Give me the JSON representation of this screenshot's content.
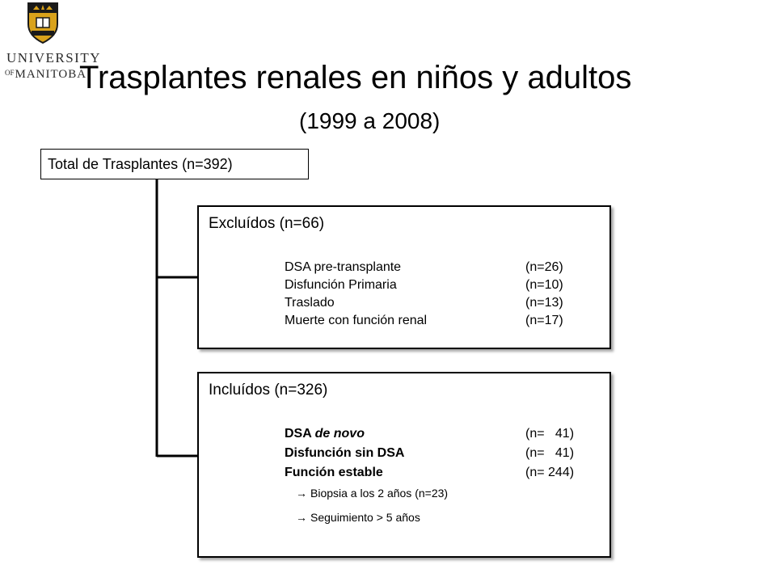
{
  "logo": {
    "line1": "UNIVERSITY",
    "line2_of": "OF",
    "line2": "MANITOBA",
    "color": "#2a2a2a",
    "crest_colors": [
      "#d9a21b",
      "#1a1a1a"
    ]
  },
  "title": "Trasplantes renales en niños y adultos",
  "subtitle": "(1999 a 2008)",
  "total_box": {
    "label": "Total de Trasplantes (n=392)"
  },
  "excluded": {
    "header": "Excluídos (n=66)",
    "items": [
      {
        "label": "DSA pre-transplante",
        "count": "(n=26)"
      },
      {
        "label": "Disfunción Primaria",
        "count": "(n=10)"
      },
      {
        "label": "Traslado",
        "count": "(n=13)"
      },
      {
        "label": "Muerte con función renal",
        "count": "(n=17)"
      }
    ]
  },
  "included": {
    "header": "Incluídos (n=326)",
    "items": [
      {
        "label_a": "DSA ",
        "label_b": "de novo",
        "count": "(n=   41)"
      },
      {
        "label_a": "Disfunción sin DSA",
        "label_b": "",
        "count": "(n=   41)"
      },
      {
        "label_a": "Función estable",
        "label_b": "",
        "count": "(n= 244)"
      }
    ],
    "subitems": [
      {
        "arrow": "→",
        "text": "Biopsia a los 2 años (n=23)"
      },
      {
        "arrow": "→",
        "text": "Seguimiento > 5 años"
      }
    ]
  },
  "colors": {
    "connector": "#000000",
    "box_border": "#000000"
  }
}
